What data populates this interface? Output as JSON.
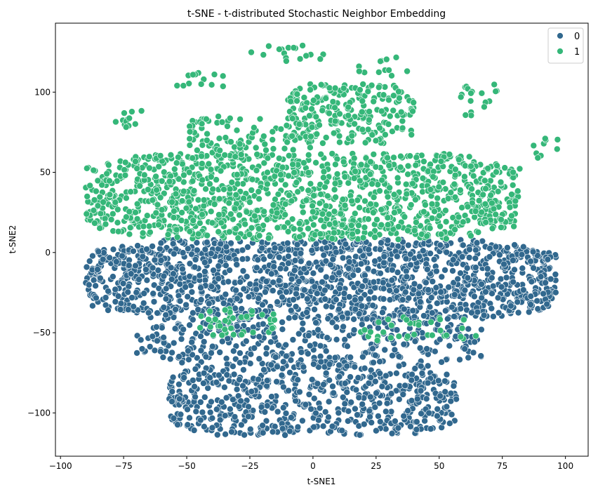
{
  "chart_data": {
    "type": "scatter",
    "title": "t-SNE - t-distributed Stochastic Neighbor Embedding",
    "xlabel": "t-SNE1",
    "ylabel": "t-SNE2",
    "xlim": [
      -102,
      109
    ],
    "ylim": [
      -127,
      143
    ],
    "xticks": [
      -100,
      -75,
      -50,
      -25,
      0,
      25,
      50,
      75,
      100
    ],
    "yticks": [
      -100,
      -50,
      0,
      50,
      100
    ],
    "xtick_labels": [
      "−100",
      "−75",
      "−50",
      "−25",
      "0",
      "25",
      "50",
      "75",
      "100"
    ],
    "ytick_labels": [
      "−100",
      "−50",
      "0",
      "50",
      "100"
    ],
    "grid": false,
    "legend_position": "top-right",
    "series": [
      {
        "name": "0",
        "color": "#31688e",
        "regions": [
          {
            "x": [
              -90,
              97
            ],
            "y": [
              -42,
              8
            ],
            "density": 1.0
          },
          {
            "x": [
              -70,
              67
            ],
            "y": [
              -70,
              -43
            ],
            "density": 0.55
          },
          {
            "x": [
              -57,
              57
            ],
            "y": [
              -114,
              -68
            ],
            "density": 0.75
          }
        ]
      },
      {
        "name": "1",
        "color": "#35b779",
        "regions": [
          {
            "x": [
              -90,
              82
            ],
            "y": [
              8,
              62
            ],
            "density": 0.85
          },
          {
            "x": [
              -10,
              40
            ],
            "y": [
              68,
              105
            ],
            "density": 0.8
          },
          {
            "x": [
              -50,
              0
            ],
            "y": [
              60,
              85
            ],
            "density": 0.5
          },
          {
            "x": [
              -45,
              -15
            ],
            "y": [
              -52,
              -35
            ],
            "density": 0.5
          },
          {
            "x": [
              15,
              65
            ],
            "y": [
              -55,
              -40
            ],
            "density": 0.3
          },
          {
            "x": [
              -80,
              -65
            ],
            "y": [
              78,
              90
            ],
            "density": 0.4
          },
          {
            "x": [
              -25,
              5
            ],
            "y": [
              118,
              130
            ],
            "density": 0.3
          },
          {
            "x": [
              18,
              38
            ],
            "y": [
              110,
              122
            ],
            "density": 0.3
          },
          {
            "x": [
              58,
              77
            ],
            "y": [
              85,
              105
            ],
            "density": 0.3
          },
          {
            "x": [
              85,
              98
            ],
            "y": [
              58,
              72
            ],
            "density": 0.3
          },
          {
            "x": [
              -55,
              -35
            ],
            "y": [
              102,
              112
            ],
            "density": 0.4
          }
        ]
      }
    ]
  }
}
